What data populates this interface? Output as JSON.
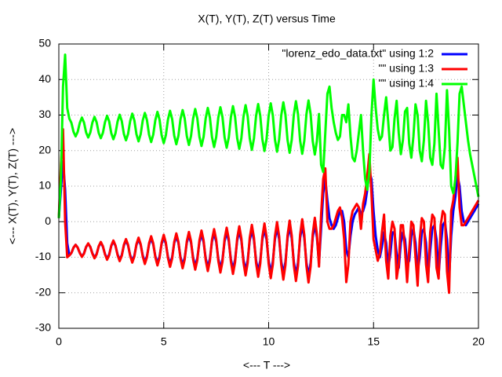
{
  "chart_data": {
    "type": "line",
    "title": "X(T), Y(T), Z(T) versus Time",
    "xlabel": "<--- T --->",
    "ylabel": "<--- X(T), Y(T), Z(T) --->",
    "xlim": [
      0,
      20
    ],
    "xticks": [
      0,
      5,
      10,
      15,
      20
    ],
    "ylim": [
      -30,
      50
    ],
    "yticks": [
      -30,
      -20,
      -10,
      0,
      10,
      20,
      30,
      40,
      50
    ],
    "grid": true,
    "legend": "top right",
    "x": [
      0,
      0.1,
      0.2,
      0.3,
      0.4,
      0.5,
      0.6,
      0.7,
      0.8,
      0.9,
      1,
      1.1,
      1.2,
      1.3,
      1.4,
      1.5,
      1.6,
      1.7,
      1.8,
      1.9,
      2,
      2.1,
      2.2,
      2.3,
      2.4,
      2.5,
      2.6,
      2.7,
      2.8,
      2.9,
      3,
      3.1,
      3.2,
      3.3,
      3.4,
      3.5,
      3.6,
      3.7,
      3.8,
      3.9,
      4,
      4.1,
      4.2,
      4.3,
      4.4,
      4.5,
      4.6,
      4.7,
      4.8,
      4.9,
      5,
      5.1,
      5.2,
      5.3,
      5.4,
      5.5,
      5.6,
      5.7,
      5.8,
      5.9,
      6,
      6.1,
      6.2,
      6.3,
      6.4,
      6.5,
      6.6,
      6.7,
      6.8,
      6.9,
      7,
      7.1,
      7.2,
      7.3,
      7.4,
      7.5,
      7.6,
      7.7,
      7.8,
      7.9,
      8,
      8.1,
      8.2,
      8.3,
      8.4,
      8.5,
      8.6,
      8.7,
      8.8,
      8.9,
      9,
      9.1,
      9.2,
      9.3,
      9.4,
      9.5,
      9.6,
      9.7,
      9.8,
      9.9,
      10,
      10.1,
      10.2,
      10.3,
      10.4,
      10.5,
      10.6,
      10.7,
      10.8,
      10.9,
      11,
      11.1,
      11.2,
      11.3,
      11.4,
      11.5,
      11.6,
      11.7,
      11.8,
      11.9,
      12,
      12.1,
      12.2,
      12.3,
      12.4,
      12.5,
      12.6,
      12.7,
      12.8,
      12.9,
      13,
      13.1,
      13.2,
      13.3,
      13.4,
      13.5,
      13.6,
      13.7,
      13.8,
      13.9,
      14,
      14.1,
      14.2,
      14.3,
      14.4,
      14.5,
      14.6,
      14.7,
      14.8,
      14.9,
      15,
      15.1,
      15.2,
      15.3,
      15.4,
      15.5,
      15.6,
      15.7,
      15.8,
      15.9,
      16,
      16.1,
      16.2,
      16.3,
      16.4,
      16.5,
      16.6,
      16.7,
      16.8,
      16.9,
      17,
      17.1,
      17.2,
      17.3,
      17.4,
      17.5,
      17.6,
      17.7,
      17.8,
      17.9,
      18,
      18.1,
      18.2,
      18.3,
      18.4,
      18.5,
      18.6,
      18.7,
      18.8,
      18.9,
      19,
      19.1,
      19.2,
      19.3,
      19.4,
      19.5,
      19.6,
      19.7,
      19.8,
      19.9,
      20
    ],
    "series": [
      {
        "name": "\"lorenz_edo_data.txt\" using 1:2",
        "color": "#0000ff",
        "values": [
          1,
          9,
          17,
          9,
          -6,
          -9.5,
          -8.8,
          -7.3,
          -6.5,
          -7.3,
          -8.8,
          -9.8,
          -8.9,
          -7.1,
          -6.2,
          -7.1,
          -8.9,
          -10.1,
          -9.1,
          -7,
          -5.9,
          -7,
          -9.1,
          -10.4,
          -9.2,
          -6.8,
          -5.6,
          -6.8,
          -9.2,
          -10.7,
          -9.4,
          -6.7,
          -5.3,
          -6.7,
          -9.4,
          -11,
          -9.5,
          -6.5,
          -5,
          -6.5,
          -9.5,
          -11.3,
          -9.7,
          -6.4,
          -4.7,
          -6.4,
          -9.7,
          -11.6,
          -9.8,
          -6.2,
          -4.4,
          -6.2,
          -9.8,
          -11.9,
          -10,
          -6,
          -4.1,
          -6,
          -10,
          -12.2,
          -10.1,
          -5.9,
          -3.8,
          -5.9,
          -10.1,
          -12.5,
          -10.3,
          -5.8,
          -3.5,
          -5.8,
          -10.3,
          -12.8,
          -10.4,
          -5.6,
          -3.2,
          -5.6,
          -10.4,
          -13.1,
          -10.6,
          -5.5,
          -2.9,
          -5.5,
          -10.6,
          -13.4,
          -10.7,
          -5.3,
          -2.6,
          -5.3,
          -10.7,
          -13.7,
          -10.9,
          -5.2,
          -2.3,
          -5.2,
          -10.9,
          -14,
          -11,
          -5,
          -2,
          -5,
          -11,
          -14.3,
          -11.2,
          -4.9,
          -1.7,
          -4.9,
          -11.2,
          -14.6,
          -11.3,
          -4.7,
          -1.4,
          -4.7,
          -11.3,
          -14.9,
          -11.5,
          -4.6,
          -1.1,
          -4.6,
          -11.5,
          -15.2,
          -11.6,
          -4.4,
          -0.8,
          -4.4,
          -11.6,
          -2,
          8,
          12,
          6,
          1,
          -1,
          -2,
          -1,
          1,
          3,
          3,
          0,
          -8,
          -10,
          -4,
          0,
          2,
          3,
          4,
          2,
          3,
          5,
          9,
          14,
          12,
          3,
          -4,
          -8,
          -10,
          -7,
          -3,
          -6,
          -13,
          -9,
          -3,
          -3,
          -9,
          -13,
          -6,
          -3,
          -5,
          -12,
          -11,
          -4,
          -2,
          -6,
          -14,
          -10,
          -3,
          -2,
          -6,
          -15,
          -8,
          -2,
          -1,
          -5,
          -15,
          -7,
          -1,
          0,
          -5,
          -16,
          -4,
          3,
          7,
          13,
          10,
          3,
          0,
          -1,
          0,
          1,
          2,
          3,
          4,
          5
        ]
      },
      {
        "name": "\"\" using 1:3",
        "color": "#ff0000",
        "values": [
          1,
          16,
          26,
          0,
          -10,
          -9.5,
          -8.8,
          -7.3,
          -6.5,
          -7.3,
          -8.8,
          -9.9,
          -9,
          -7.1,
          -6.1,
          -7.1,
          -9,
          -10.3,
          -9.2,
          -6.9,
          -5.7,
          -6.9,
          -9.2,
          -10.7,
          -9.4,
          -6.7,
          -5.3,
          -6.7,
          -9.4,
          -11.1,
          -9.6,
          -6.5,
          -4.9,
          -6.5,
          -9.6,
          -11.5,
          -9.8,
          -6.3,
          -4.5,
          -6.3,
          -9.8,
          -11.9,
          -10,
          -6.1,
          -4.1,
          -6.1,
          -10,
          -12.3,
          -10.2,
          -5.9,
          -3.7,
          -5.9,
          -10.2,
          -12.7,
          -10.4,
          -5.7,
          -3.3,
          -5.7,
          -10.4,
          -13.1,
          -10.6,
          -5.5,
          -2.9,
          -5.5,
          -10.6,
          -13.5,
          -10.8,
          -5.3,
          -2.5,
          -5.3,
          -10.8,
          -13.9,
          -11,
          -5.1,
          -2.1,
          -5.1,
          -11,
          -14.3,
          -11.2,
          -4.9,
          -1.7,
          -4.9,
          -11.2,
          -14.7,
          -11.4,
          -4.7,
          -1.3,
          -4.7,
          -11.4,
          -15.1,
          -11.6,
          -4.5,
          -0.9,
          -4.5,
          -11.6,
          -15.5,
          -11.8,
          -4.3,
          -0.5,
          -4.3,
          -11.8,
          -15.9,
          -12,
          -4.1,
          -0.1,
          -4.1,
          -12,
          -16.3,
          -12.2,
          -3.9,
          0.3,
          -3.9,
          -12.2,
          -16.7,
          -12.4,
          -3.7,
          0.7,
          -3.7,
          -12.4,
          -17.1,
          -12.6,
          -3.5,
          1.1,
          -3.5,
          -12.6,
          2,
          12,
          15,
          0,
          -2,
          -2,
          -1,
          1,
          3,
          4,
          1,
          -5,
          -17,
          -12,
          0,
          3,
          4,
          5,
          4,
          -2,
          5,
          8,
          13,
          19,
          8,
          -5,
          -8,
          -11,
          -9,
          -3,
          2,
          -11,
          -16,
          -4,
          0,
          -2,
          -16,
          -12,
          -1,
          -1,
          -8,
          -17,
          -8,
          0,
          -1,
          -10,
          -18,
          -5,
          1,
          0,
          -12,
          -17,
          -3,
          2,
          1,
          -13,
          -16,
          -1,
          3,
          2,
          -14,
          -20,
          3,
          6,
          12,
          18,
          4,
          -1,
          -1,
          0,
          1,
          2,
          3,
          4,
          5,
          6
        ]
      },
      {
        "name": "\"\" using 1:4",
        "color": "#00ff00",
        "values": [
          1,
          12,
          38,
          47,
          32,
          29,
          27.8,
          25.3,
          24,
          25.3,
          27.8,
          29.3,
          27.9,
          25.1,
          23.7,
          25.1,
          27.9,
          29.5,
          28,
          25,
          23.5,
          25,
          28,
          29.8,
          28.2,
          24.9,
          23.2,
          24.9,
          28.2,
          30.1,
          28.3,
          24.7,
          22.9,
          24.7,
          28.3,
          30.4,
          28.5,
          24.6,
          22.6,
          24.6,
          28.5,
          30.6,
          28.6,
          24.5,
          22.4,
          24.5,
          28.6,
          30.9,
          28.7,
          24.3,
          22.1,
          24.3,
          28.7,
          31.2,
          28.9,
          24.2,
          21.8,
          24.2,
          28.9,
          31.4,
          29,
          24.1,
          21.6,
          24.1,
          29,
          31.7,
          29.1,
          23.9,
          21.3,
          23.9,
          29.1,
          32,
          29.3,
          23.8,
          21,
          23.8,
          29.3,
          32.2,
          29.4,
          23.7,
          20.8,
          23.7,
          29.4,
          32.5,
          29.5,
          23.5,
          20.5,
          23.5,
          29.5,
          32.8,
          29.7,
          23.4,
          20.2,
          23.4,
          29.7,
          33.1,
          29.8,
          23.2,
          19.9,
          23.2,
          29.8,
          33.3,
          29.9,
          23.1,
          19.7,
          23.1,
          29.9,
          33.6,
          30.1,
          23,
          19.4,
          23,
          30.1,
          33.9,
          30.2,
          22.8,
          19.1,
          22.8,
          30.2,
          34.1,
          30.3,
          22.7,
          18.9,
          22.7,
          30.3,
          16,
          14,
          25,
          36,
          38,
          32,
          28,
          25,
          23,
          24,
          30,
          30,
          28,
          33,
          24,
          18,
          17,
          20,
          25,
          30,
          20,
          12,
          9,
          14,
          30,
          40,
          32,
          26,
          23,
          24,
          30,
          35,
          28,
          20,
          21,
          29,
          34,
          25,
          19,
          23,
          31,
          32,
          22,
          18,
          24,
          33,
          30,
          20,
          17,
          23,
          34,
          28,
          18,
          16,
          22,
          36,
          26,
          16,
          15,
          21,
          37,
          26,
          10,
          8,
          12,
          22,
          36,
          38,
          33,
          28,
          23,
          19,
          16,
          13,
          10,
          7
        ]
      }
    ]
  }
}
